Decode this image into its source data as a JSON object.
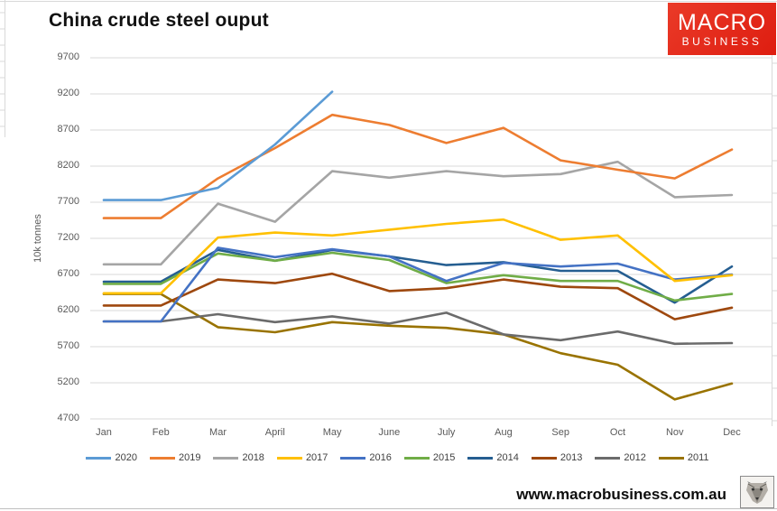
{
  "header": {
    "title": "China crude steel ouput"
  },
  "logo": {
    "line1": "MACRO",
    "line2": "BUSINESS",
    "bg_color": "#e02517"
  },
  "footer": {
    "url": "www.macrobusiness.com.au",
    "wolf_icon": "wolf-logo"
  },
  "chart_data": {
    "type": "line",
    "title": "China crude steel ouput",
    "xlabel": "",
    "ylabel": "10k tonnes",
    "ylim": [
      4700,
      9700
    ],
    "y_ticks": [
      9700,
      9200,
      8700,
      8200,
      7700,
      7200,
      6700,
      6200,
      5700,
      5200,
      4700
    ],
    "grid": "horizontal",
    "gridline_color": "#d9d9d9",
    "legend_position": "bottom",
    "categories": [
      "Jan",
      "Feb",
      "Mar",
      "April",
      "May",
      "June",
      "July",
      "Aug",
      "Sep",
      "Oct",
      "Nov",
      "Dec"
    ],
    "series": [
      {
        "name": "2020",
        "color": "#5B9BD5",
        "values": [
          7730,
          7730,
          7900,
          8500,
          9230,
          null,
          null,
          null,
          null,
          null,
          null,
          null
        ]
      },
      {
        "name": "2019",
        "color": "#ED7D31",
        "values": [
          7480,
          7480,
          8030,
          8450,
          8910,
          8770,
          8520,
          8730,
          8280,
          8150,
          8030,
          8430
        ]
      },
      {
        "name": "2018",
        "color": "#A5A5A5",
        "values": [
          6840,
          6840,
          7680,
          7430,
          8130,
          8040,
          8130,
          8060,
          8090,
          8260,
          7770,
          7800
        ]
      },
      {
        "name": "2017",
        "color": "#FFC000",
        "values": [
          6440,
          6440,
          7210,
          7280,
          7240,
          7320,
          7400,
          7460,
          7180,
          7240,
          6610,
          6690
        ]
      },
      {
        "name": "2016",
        "color": "#4472C4",
        "values": [
          6050,
          6050,
          7070,
          6940,
          7050,
          6950,
          6610,
          6860,
          6810,
          6850,
          6630,
          6700
        ]
      },
      {
        "name": "2015",
        "color": "#70AD47",
        "values": [
          6570,
          6570,
          6990,
          6890,
          7000,
          6900,
          6580,
          6690,
          6610,
          6610,
          6340,
          6430
        ]
      },
      {
        "name": "2014",
        "color": "#255E91",
        "values": [
          6600,
          6600,
          7040,
          6890,
          7040,
          6950,
          6830,
          6870,
          6750,
          6750,
          6310,
          6810
        ]
      },
      {
        "name": "2013",
        "color": "#9E480E",
        "values": [
          6270,
          6270,
          6630,
          6580,
          6710,
          6470,
          6510,
          6630,
          6530,
          6510,
          6080,
          6240
        ]
      },
      {
        "name": "2012",
        "color": "#6B6B6B",
        "values": [
          6050,
          6050,
          6150,
          6040,
          6120,
          6020,
          6170,
          5870,
          5790,
          5910,
          5740,
          5750
        ]
      },
      {
        "name": "2011",
        "color": "#997300",
        "values": [
          6430,
          6430,
          5970,
          5900,
          6040,
          5990,
          5960,
          5870,
          5610,
          5450,
          4970,
          5190
        ]
      }
    ]
  }
}
